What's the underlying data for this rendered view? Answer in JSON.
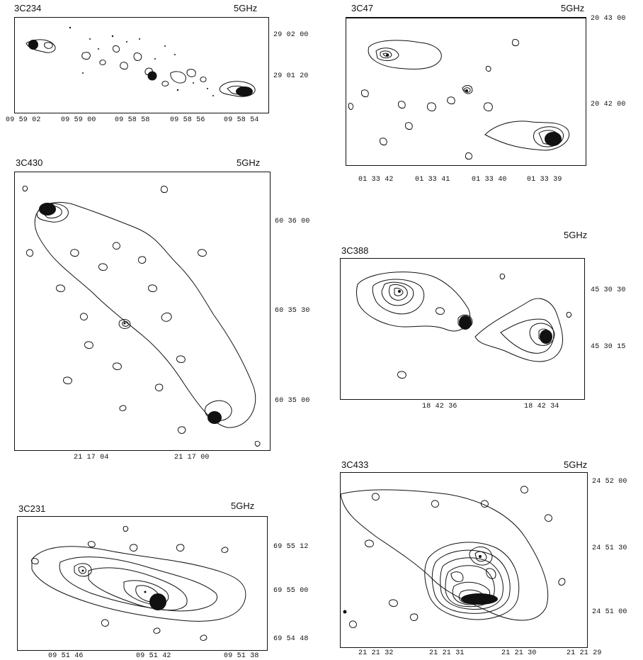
{
  "panels": [
    {
      "id": "3c234",
      "name": "3C234",
      "freq": "5GHz",
      "x_ticks": [
        "09 59 02",
        "09 59 00",
        "09 58 58",
        "09 58 56",
        "09 58 54"
      ],
      "y_ticks": [
        "29 02 00",
        "29 01 20"
      ]
    },
    {
      "id": "3c47",
      "name": "3C47",
      "freq": "5GHz",
      "x_ticks": [
        "01 33 42",
        "01 33 41",
        "01 33 40",
        "01 33 39"
      ],
      "y_ticks": [
        "20 43 00",
        "20 42 00"
      ]
    },
    {
      "id": "3c430",
      "name": "3C430",
      "freq": "5GHz",
      "x_ticks": [
        "21 17 04",
        "21 17 00"
      ],
      "y_ticks": [
        "60 36 00",
        "60 35 30",
        "60 35 00"
      ]
    },
    {
      "id": "3c388",
      "name": "3C388",
      "freq": "5GHz",
      "x_ticks": [
        "18 42 36",
        "18 42 34"
      ],
      "y_ticks": [
        "45 30 30",
        "45 30 15"
      ]
    },
    {
      "id": "3c231",
      "name": "3C231",
      "freq": "5GHz",
      "x_ticks": [
        "09 51 46",
        "09 51 42",
        "09 51 38"
      ],
      "y_ticks": [
        "69 55 12",
        "69 55 00",
        "69 54 48"
      ]
    },
    {
      "id": "3c433",
      "name": "3C433",
      "freq": "5GHz",
      "x_ticks": [
        "21 21 32",
        "21 21 31",
        "21 21 30",
        "21 21 29"
      ],
      "y_ticks": [
        "24 52 00",
        "24 51 30",
        "24 51 00"
      ]
    }
  ]
}
